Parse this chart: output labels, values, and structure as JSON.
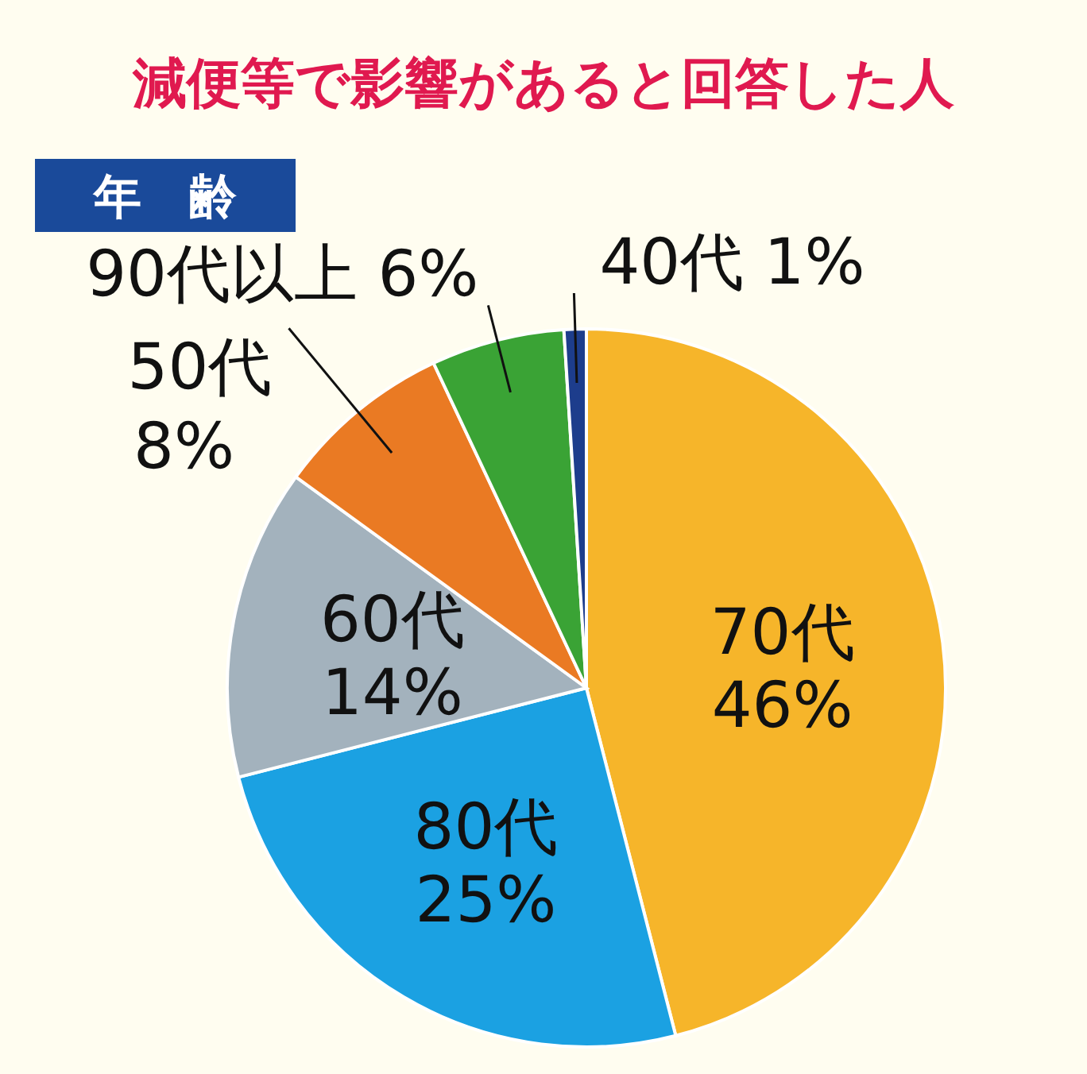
{
  "chart_data": {
    "type": "pie",
    "title": "減便等で影響があると回答した人",
    "subtitle": "年　齢",
    "categories": [
      "70代",
      "80代",
      "60代",
      "50代",
      "90代以上",
      "40代"
    ],
    "values": [
      46,
      25,
      14,
      8,
      6,
      1
    ],
    "colors": [
      "#f6b52a",
      "#1ba1e2",
      "#a3b2bd",
      "#ea7a23",
      "#3aa335",
      "#1d3d8c"
    ],
    "value_labels": [
      "46%",
      "25%",
      "14%",
      "8%",
      "6%",
      "1%"
    ]
  }
}
